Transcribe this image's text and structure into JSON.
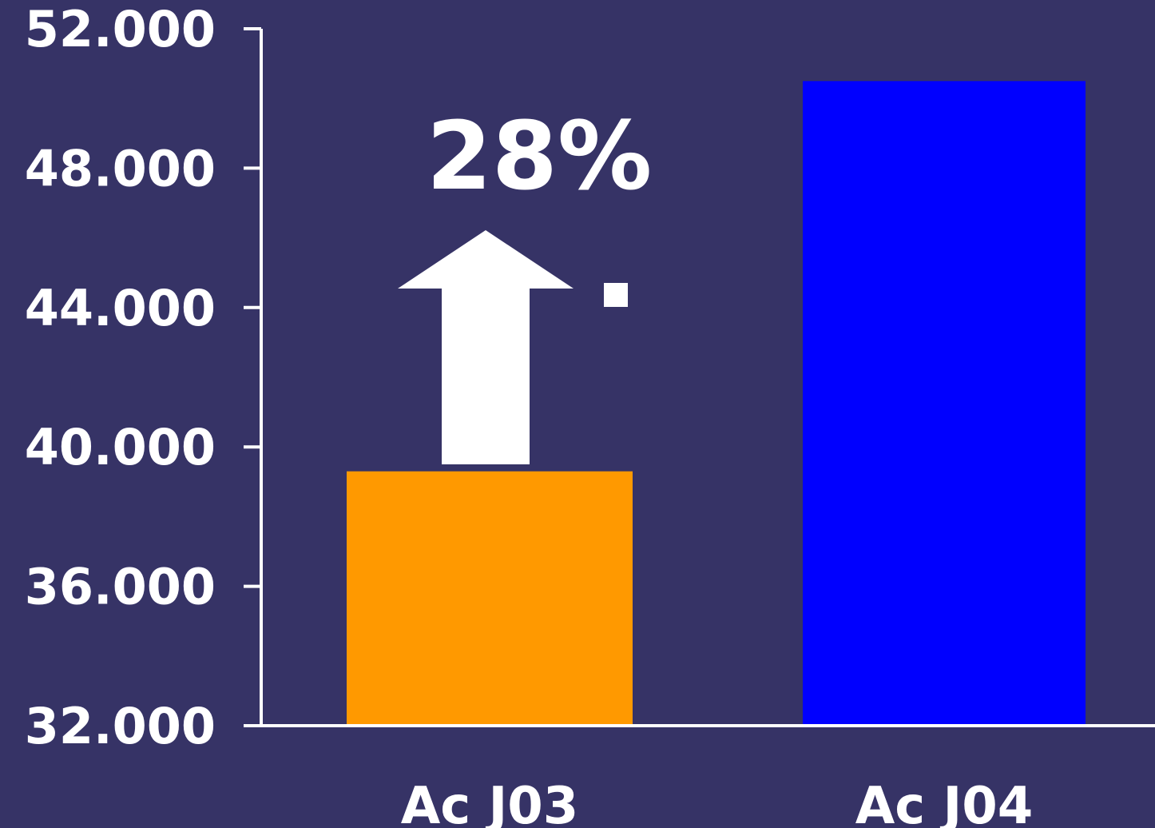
{
  "colors": {
    "background": "#363366",
    "axis": "#ffffff",
    "text": "#ffffff",
    "arrow": "#ffffff"
  },
  "chart_data": {
    "type": "bar",
    "categories": [
      "Ac J03",
      "Ac J04"
    ],
    "values": [
      39300,
      50500
    ],
    "bar_colors": [
      "#ff9900",
      "#0000ff"
    ],
    "ylim": [
      32000,
      52000
    ],
    "yticks": [
      32000,
      36000,
      40000,
      44000,
      48000,
      52000
    ],
    "ytick_labels": [
      "32.000",
      "36.000",
      "40.000",
      "44.000",
      "48.000",
      "52.000"
    ],
    "title": "",
    "xlabel": "",
    "ylabel": "",
    "grid": false,
    "legend": "none",
    "annotations": [
      {
        "text": "28%",
        "arrow": "up",
        "refers_to": "Ac J03"
      }
    ]
  }
}
